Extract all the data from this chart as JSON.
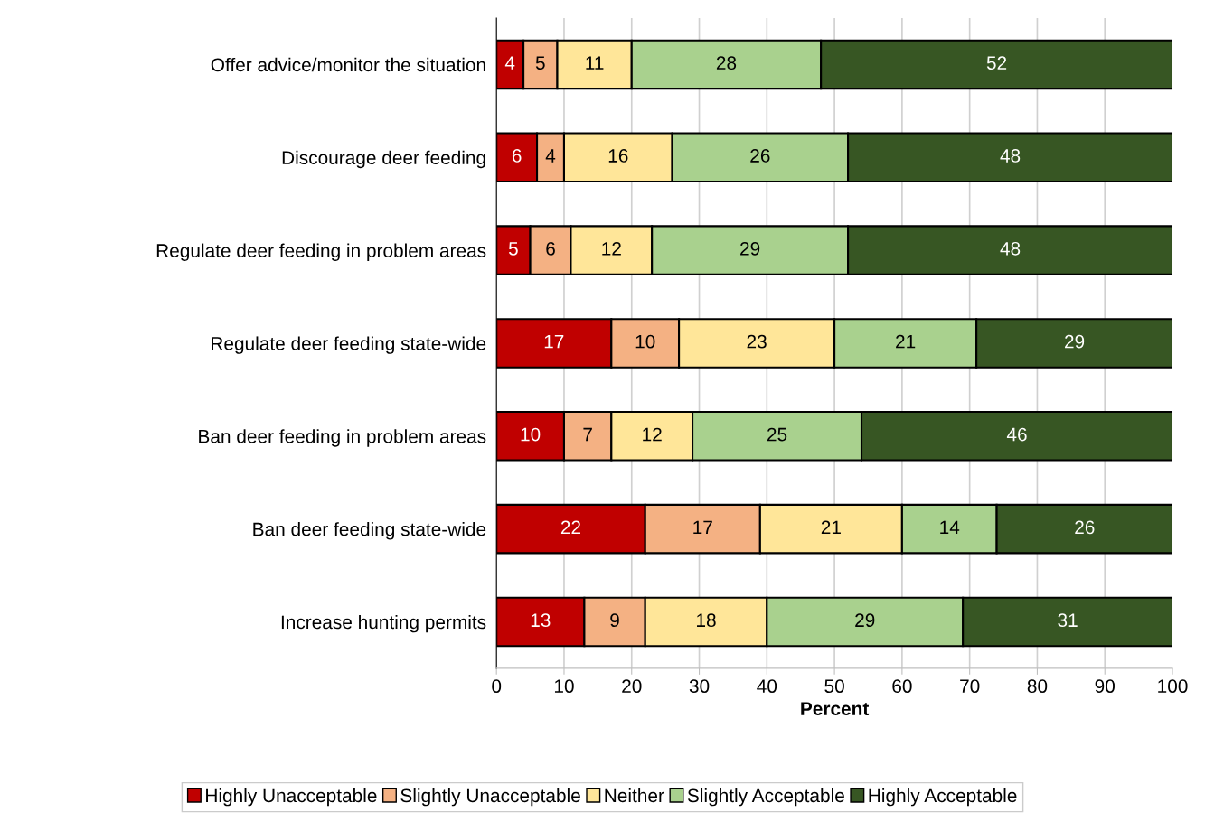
{
  "chart_data": {
    "type": "bar",
    "orientation": "horizontal",
    "stacked": true,
    "xlabel": "Percent",
    "categories": [
      "Offer advice/monitor the situation",
      "Discourage deer feeding",
      "Regulate deer feeding in problem areas",
      "Regulate deer feeding state-wide",
      "Ban deer feeding in problem areas",
      "Ban deer feeding state-wide",
      "Increase hunting permits"
    ],
    "series": [
      {
        "name": "Highly Unacceptable",
        "color": "#c00000",
        "values": [
          4,
          6,
          5,
          17,
          10,
          22,
          13
        ]
      },
      {
        "name": "Slightly Unacceptable",
        "color": "#f4b183",
        "values": [
          5,
          4,
          6,
          10,
          7,
          17,
          9
        ]
      },
      {
        "name": "Neither",
        "color": "#ffe699",
        "values": [
          11,
          16,
          12,
          23,
          12,
          21,
          18
        ]
      },
      {
        "name": "Slightly Acceptable",
        "color": "#a9d18e",
        "values": [
          28,
          26,
          29,
          21,
          25,
          14,
          29
        ]
      },
      {
        "name": "Highly Acceptable",
        "color": "#375623",
        "values": [
          52,
          48,
          48,
          29,
          46,
          26,
          31
        ]
      }
    ],
    "xlim": [
      0,
      100
    ],
    "xticks": [
      0,
      10,
      20,
      30,
      40,
      50,
      60,
      70,
      80,
      90,
      100
    ],
    "grid": "x",
    "legend": "bottom",
    "data_labels": true
  }
}
